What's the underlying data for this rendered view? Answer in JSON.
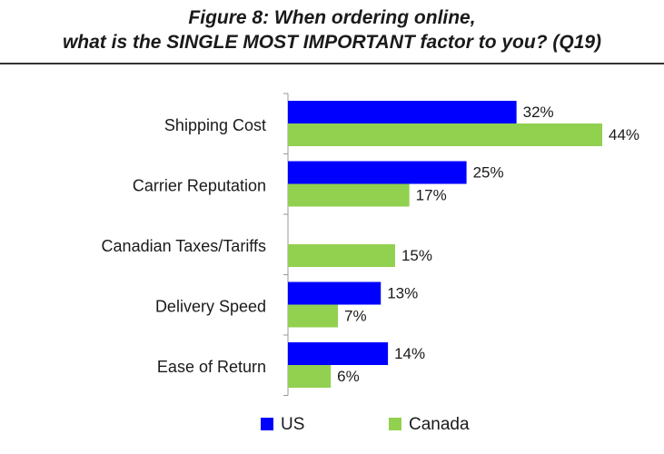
{
  "title_lines": [
    "Figure 8: When ordering online,",
    "what is the SINGLE MOST IMPORTANT factor to you? (Q19)"
  ],
  "colors": {
    "US": "#0000ff",
    "Canada": "#92d050",
    "axis": "#999999"
  },
  "chart_data": {
    "type": "bar",
    "orientation": "horizontal",
    "title": "Figure 8: When ordering online, what is the SINGLE MOST IMPORTANT factor to you? (Q19)",
    "categories": [
      "Shipping Cost",
      "Carrier Reputation",
      "Canadian Taxes/Tariffs",
      "Delivery Speed",
      "Ease of Return"
    ],
    "series": [
      {
        "name": "US",
        "values": [
          32,
          25,
          null,
          13,
          14
        ]
      },
      {
        "name": "Canada",
        "values": [
          44,
          17,
          15,
          7,
          6
        ]
      }
    ],
    "value_labels": {
      "US": [
        "32%",
        "25%",
        "",
        "13%",
        "14%"
      ],
      "Canada": [
        "44%",
        "17%",
        "15%",
        "7%",
        "6%"
      ]
    },
    "unit": "%",
    "xlim": [
      0,
      44
    ],
    "grid": false,
    "legend_position": "bottom"
  }
}
